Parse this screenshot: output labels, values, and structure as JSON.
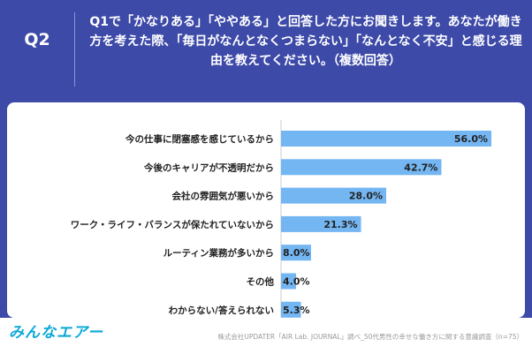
{
  "header": {
    "label": "Q2",
    "question": "Q1で「かなりある」「ややある」と回答した方にお聞きします。あなたが働き方を考えた際、「毎日がなんとなくつまらない」「なんとなく不安」と感じる理由を教えてください。（複数回答）"
  },
  "footer": {
    "logo": "みんなエアー",
    "source": "株式会社UPDATER「AIR Lab. JOURNAL」調べ_50代男性の幸せな働き方に関する意識調査（n=75）"
  },
  "colors": {
    "bar": "#74b6f2",
    "header_bg": "#3d4aa8",
    "text": "#222222"
  },
  "chart_data": {
    "type": "bar",
    "orientation": "horizontal",
    "categories": [
      "今の仕事に閉塞感を感じているから",
      "今後のキャリアが不透明だから",
      "会社の雰囲気が悪いから",
      "ワーク・ライフ・バランスが保たれていないから",
      "ルーティン業務が多いから",
      "その他",
      "わからない/答えられない"
    ],
    "values": [
      56.0,
      42.7,
      28.0,
      21.3,
      8.0,
      4.0,
      5.3
    ],
    "value_labels": [
      "56.0%",
      "42.7%",
      "28.0%",
      "21.3%",
      "8.0%",
      "4.0%",
      "5.3%"
    ],
    "xlim": [
      0,
      60
    ],
    "grid": false
  }
}
